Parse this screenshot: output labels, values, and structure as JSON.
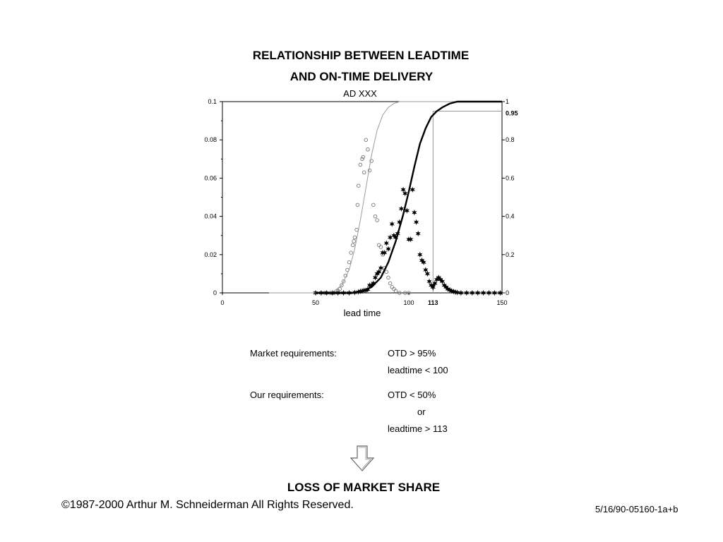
{
  "title_line1": "RELATIONSHIP BETWEEN LEADTIME",
  "title_line2": "AND ON-TIME DELIVERY",
  "chart_data": {
    "type": "scatter",
    "subtitle": "AD XXX",
    "xlabel": "lead time",
    "xlim": [
      0,
      150
    ],
    "x_ticks": [
      "0",
      "50",
      "100",
      "113",
      "150"
    ],
    "y_left_lim": [
      0,
      0.1
    ],
    "y_left_ticks": [
      "0",
      "0.02",
      "0.04",
      "0.06",
      "0.08",
      "0.1"
    ],
    "y_right_lim": [
      0,
      1
    ],
    "y_right_ticks": [
      "0",
      "0.2",
      "0.4",
      "0.6",
      "0.8",
      "0.95",
      "1"
    ],
    "markers": {
      "otd_target": 0.95,
      "leadtime_at_target": 113
    },
    "series": [
      {
        "axis": "left",
        "style": "open-circle",
        "points": [
          [
            55,
            0
          ],
          [
            58,
            0
          ],
          [
            60,
            0
          ],
          [
            62,
            0.001
          ],
          [
            63,
            0.002
          ],
          [
            64,
            0.004
          ],
          [
            65,
            0.006
          ],
          [
            66,
            0.009
          ],
          [
            67,
            0.012
          ],
          [
            68,
            0.016
          ],
          [
            69,
            0.021
          ],
          [
            70,
            0.025
          ],
          [
            70.5,
            0.027
          ],
          [
            71,
            0.029
          ],
          [
            72,
            0.033
          ],
          [
            72.5,
            0.046
          ],
          [
            73,
            0.056
          ],
          [
            74,
            0.067
          ],
          [
            75,
            0.07
          ],
          [
            75.5,
            0.071
          ],
          [
            76,
            0.063
          ],
          [
            77,
            0.08
          ],
          [
            78,
            0.075
          ],
          [
            79,
            0.064
          ],
          [
            80,
            0.069
          ],
          [
            81,
            0.046
          ],
          [
            82,
            0.04
          ],
          [
            83,
            0.038
          ],
          [
            84,
            0.025
          ],
          [
            85,
            0.024
          ],
          [
            86,
            0.02
          ],
          [
            87,
            0.013
          ],
          [
            88,
            0.011
          ],
          [
            89,
            0.008
          ],
          [
            90,
            0.005
          ],
          [
            91,
            0.003
          ],
          [
            92,
            0.002
          ],
          [
            93,
            0.001
          ],
          [
            95,
            0
          ],
          [
            98,
            0
          ],
          [
            100,
            0
          ]
        ]
      },
      {
        "axis": "left",
        "style": "star",
        "points": [
          [
            50,
            0
          ],
          [
            53,
            0
          ],
          [
            56,
            0
          ],
          [
            59,
            0
          ],
          [
            62,
            0
          ],
          [
            65,
            0
          ],
          [
            68,
            0
          ],
          [
            71,
            0.0002
          ],
          [
            73,
            0.0005
          ],
          [
            74,
            0.0008
          ],
          [
            75,
            0.001
          ],
          [
            76,
            0.0013
          ],
          [
            77,
            0.0013
          ],
          [
            78,
            0.0018
          ],
          [
            79,
            0.004
          ],
          [
            80,
            0.004
          ],
          [
            81,
            0.005
          ],
          [
            82,
            0.008
          ],
          [
            83,
            0.01
          ],
          [
            84,
            0.011
          ],
          [
            85,
            0.013
          ],
          [
            86,
            0.021
          ],
          [
            87,
            0.021
          ],
          [
            88,
            0.026
          ],
          [
            89,
            0.023
          ],
          [
            90,
            0.029
          ],
          [
            91,
            0.036
          ],
          [
            92,
            0.03
          ],
          [
            93,
            0.029
          ],
          [
            94,
            0.031
          ],
          [
            95,
            0.037
          ],
          [
            96,
            0.044
          ],
          [
            97,
            0.054
          ],
          [
            98,
            0.052
          ],
          [
            99,
            0.043
          ],
          [
            100,
            0.028
          ],
          [
            101,
            0.028
          ],
          [
            102,
            0.054
          ],
          [
            103,
            0.042
          ],
          [
            104,
            0.037
          ],
          [
            105,
            0.031
          ],
          [
            106,
            0.02
          ],
          [
            107,
            0.017
          ],
          [
            108,
            0.016
          ],
          [
            109,
            0.012
          ],
          [
            110,
            0.01
          ],
          [
            111,
            0.006
          ],
          [
            112,
            0.004
          ],
          [
            113,
            0.003
          ],
          [
            114,
            0.005
          ],
          [
            115,
            0.007
          ],
          [
            116,
            0.008
          ],
          [
            117,
            0.007
          ],
          [
            118,
            0.006
          ],
          [
            119,
            0.004
          ],
          [
            120,
            0.003
          ],
          [
            121,
            0.002
          ],
          [
            122,
            0.0015
          ],
          [
            123,
            0.001
          ],
          [
            124,
            0.0007
          ],
          [
            125,
            0.0004
          ],
          [
            126,
            0.0002
          ],
          [
            128,
            0
          ],
          [
            131,
            0
          ],
          [
            134,
            0
          ],
          [
            137,
            0
          ],
          [
            140,
            0
          ],
          [
            143,
            0
          ],
          [
            146,
            0
          ],
          [
            149,
            0
          ]
        ]
      },
      {
        "axis": "right",
        "style": "thin-line",
        "points": [
          [
            25,
            0
          ],
          [
            55,
            0
          ],
          [
            60,
            0.01
          ],
          [
            64,
            0.04
          ],
          [
            68,
            0.12
          ],
          [
            71,
            0.23
          ],
          [
            74,
            0.38
          ],
          [
            77,
            0.55
          ],
          [
            80,
            0.72
          ],
          [
            83,
            0.85
          ],
          [
            86,
            0.93
          ],
          [
            89,
            0.97
          ],
          [
            92,
            0.99
          ],
          [
            95,
            1
          ],
          [
            110,
            1
          ],
          [
            150,
            1
          ]
        ]
      },
      {
        "axis": "right",
        "style": "thick-line",
        "points": [
          [
            50,
            0
          ],
          [
            70,
            0
          ],
          [
            75,
            0.01
          ],
          [
            80,
            0.03
          ],
          [
            85,
            0.08
          ],
          [
            89,
            0.16
          ],
          [
            93,
            0.27
          ],
          [
            97,
            0.41
          ],
          [
            100,
            0.53
          ],
          [
            103,
            0.66
          ],
          [
            106,
            0.78
          ],
          [
            109,
            0.86
          ],
          [
            112,
            0.92
          ],
          [
            115,
            0.95
          ],
          [
            118,
            0.97
          ],
          [
            122,
            0.99
          ],
          [
            126,
            1
          ],
          [
            150,
            1
          ]
        ]
      }
    ]
  },
  "requirements": {
    "market_label": "Market requirements:",
    "market_otd": "OTD > 95%",
    "market_leadtime": "leadtime < 100",
    "ours_label": "Our requirements:",
    "ours_otd": "OTD < 50%",
    "ours_or": "or",
    "ours_leadtime": "leadtime > 113"
  },
  "conclusion": "LOSS OF MARKET SHARE",
  "copyright": "©1987-2000 Arthur M. Schneiderman  All Rights Reserved.",
  "doc_id": "5/16/90-05160-1a+b"
}
